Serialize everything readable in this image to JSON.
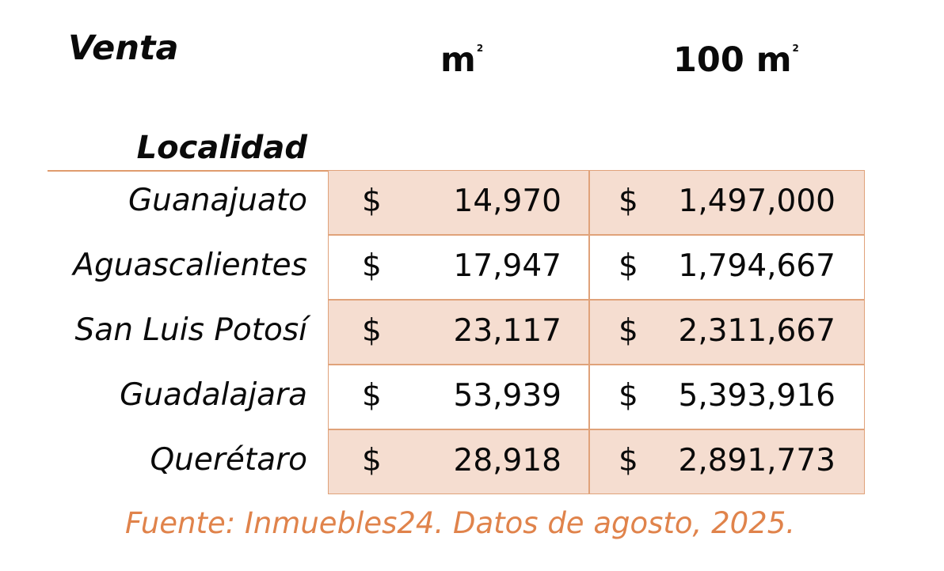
{
  "header": {
    "venta": "Venta",
    "col_a": "m",
    "col_a_sup": "2",
    "col_b": "100 m",
    "col_b_sup": "2",
    "localidad": "Localidad"
  },
  "currency_symbol": "$",
  "rows": [
    {
      "localidad": "Guanajuato",
      "m2": "14,970",
      "m100": "1,497,000"
    },
    {
      "localidad": "Aguascalientes",
      "m2": "17,947",
      "m100": "1,794,667"
    },
    {
      "localidad": "San Luis Potosí",
      "m2": "23,117",
      "m100": "2,311,667"
    },
    {
      "localidad": "Guadalajara",
      "m2": "53,939",
      "m100": "5,393,916"
    },
    {
      "localidad": "Querétaro",
      "m2": "28,918",
      "m100": "2,891,773"
    }
  ],
  "source": "Fuente: Inmuebles24. Datos de agosto, 2025.",
  "colors": {
    "shade": "#f5ddd0",
    "border": "#e0a27a",
    "source_text": "#e0834b"
  }
}
